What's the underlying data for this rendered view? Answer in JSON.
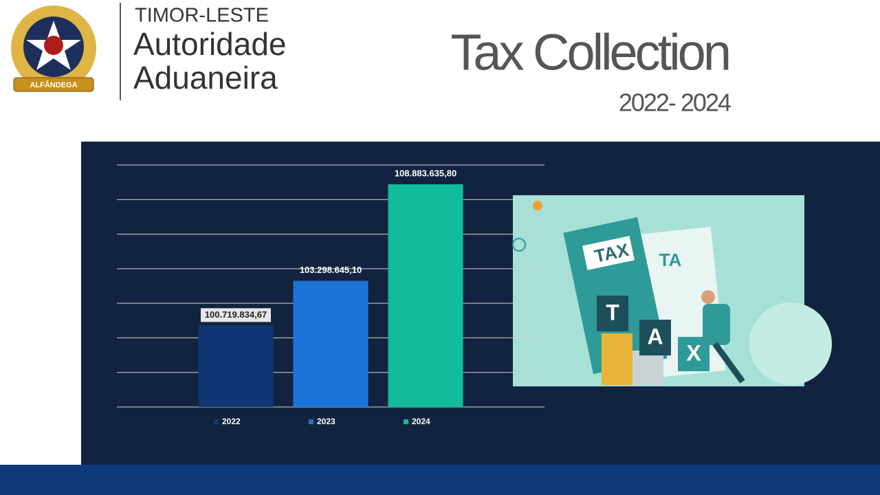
{
  "header": {
    "logo_text": "ALFÂNDEGA",
    "country": "TIMOR-LESTE",
    "org_line1": "Autoridade",
    "org_line2": "Aduaneira"
  },
  "illustration": {
    "texts": [
      "TAX",
      "TA",
      "T",
      "A",
      "X"
    ]
  },
  "chart_data": {
    "type": "bar",
    "title": "Tax Collection",
    "subtitle": "2022- 2024",
    "categories": [
      "2022",
      "2023",
      "2024"
    ],
    "values": [
      100719834.67,
      103298645.1,
      108883635.8
    ],
    "value_labels": [
      "100.719.834,67",
      "103.298.645,10",
      "108.883.635,80"
    ],
    "colors": [
      "#0f3672",
      "#1c74d9",
      "#10bc9c"
    ],
    "ylim": [
      96000000,
      110000000
    ],
    "yticks": [
      96000000,
      98000000,
      100000000,
      102000000,
      104000000,
      106000000,
      108000000,
      110000000
    ],
    "grid": true,
    "legend": "bottom"
  }
}
